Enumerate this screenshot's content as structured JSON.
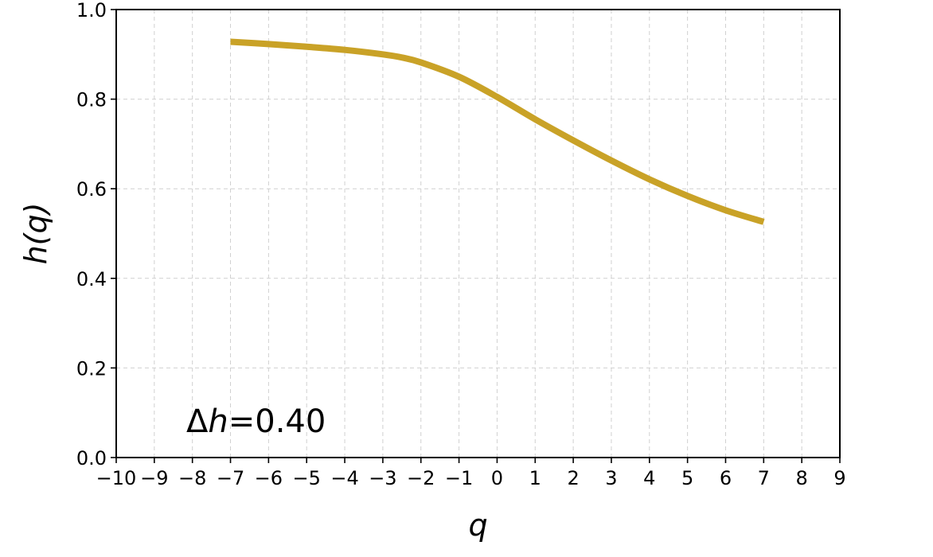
{
  "chart_data": {
    "type": "line",
    "title": "",
    "xlabel": "q",
    "ylabel": "h(q)",
    "xlim": [
      -10,
      9
    ],
    "ylim": [
      0.0,
      1.0
    ],
    "x_ticks": [
      -10,
      -9,
      -8,
      -7,
      -6,
      -5,
      -4,
      -3,
      -2,
      -1,
      0,
      1,
      2,
      3,
      4,
      5,
      6,
      7,
      8,
      9
    ],
    "x_tick_labels": [
      "−10",
      "−9",
      "−8",
      "−7",
      "−6",
      "−5",
      "−4",
      "−3",
      "−2",
      "−1",
      "0",
      "1",
      "2",
      "3",
      "4",
      "5",
      "6",
      "7",
      "8",
      "9"
    ],
    "y_ticks": [
      0.0,
      0.2,
      0.4,
      0.6,
      0.8,
      1.0
    ],
    "y_tick_labels": [
      "0.0",
      "0.2",
      "0.4",
      "0.6",
      "0.8",
      "1.0"
    ],
    "grid": true,
    "series": [
      {
        "color": "#c9a227",
        "x": [
          -7,
          -6,
          -5,
          -4,
          -3,
          -2.5,
          -2,
          -1,
          0,
          1,
          2,
          3,
          4,
          5,
          6,
          7
        ],
        "y": [
          0.928,
          0.923,
          0.917,
          0.91,
          0.9,
          0.893,
          0.882,
          0.85,
          0.805,
          0.755,
          0.708,
          0.663,
          0.621,
          0.584,
          0.552,
          0.526
        ]
      }
    ],
    "annotation": {
      "prefix": "Δ",
      "var": "h",
      "value": "=0.40"
    }
  }
}
